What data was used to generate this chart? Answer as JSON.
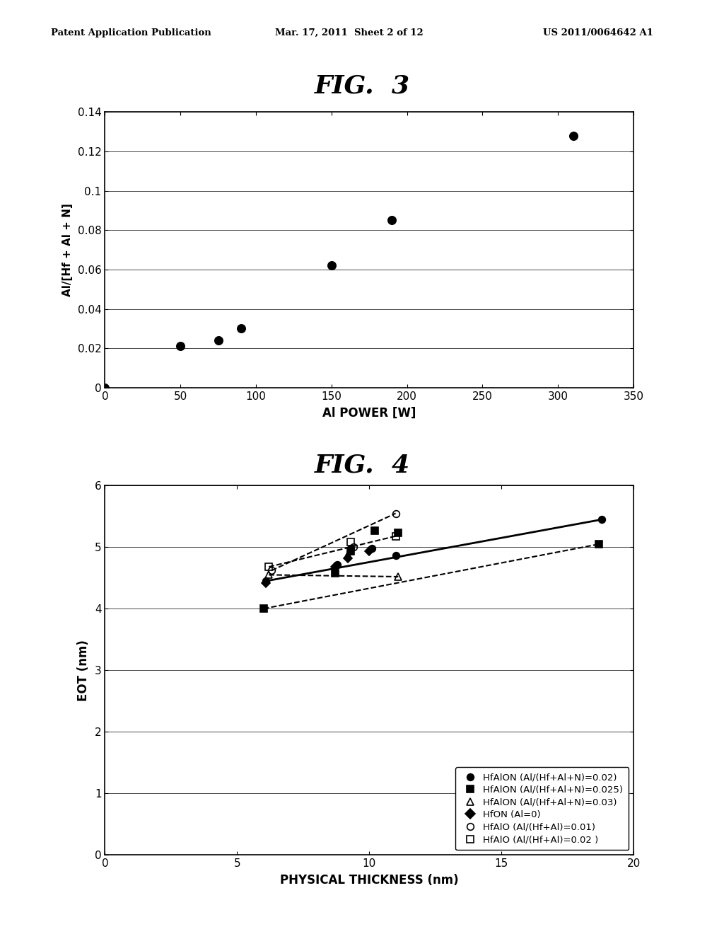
{
  "fig3": {
    "title": "FIG.  3",
    "xlabel": "Al POWER [W]",
    "ylabel": "Al/[Hf + Al + N]",
    "xlim": [
      0,
      350
    ],
    "ylim": [
      0,
      0.14
    ],
    "xticks": [
      0,
      50,
      100,
      150,
      200,
      250,
      300,
      350
    ],
    "yticks": [
      0,
      0.02,
      0.04,
      0.06,
      0.08,
      0.1,
      0.12,
      0.14
    ],
    "data_x": [
      0,
      50,
      75,
      90,
      150,
      190,
      310
    ],
    "data_y": [
      0.0,
      0.021,
      0.024,
      0.03,
      0.062,
      0.085,
      0.128
    ]
  },
  "fig4": {
    "title": "FIG.  4",
    "xlabel": "PHYSICAL THICKNESS (nm)",
    "ylabel": "EOT (nm)",
    "xlim": [
      0,
      20
    ],
    "ylim": [
      0,
      6
    ],
    "xticks": [
      0,
      5,
      10,
      15,
      20
    ],
    "yticks": [
      0,
      1,
      2,
      3,
      4,
      5,
      6
    ],
    "series": [
      {
        "label": "HfAlON (Al/(Hf+Al+N)=0.02)",
        "marker": "o",
        "filled": true,
        "x": [
          6.1,
          8.8,
          9.3,
          10.1,
          11.0,
          18.8
        ],
        "y": [
          4.45,
          4.72,
          4.98,
          4.98,
          4.87,
          5.45
        ],
        "markersize": 7
      },
      {
        "label": "HfAlON (Al/(Hf+Al+N)=0.025)",
        "marker": "s",
        "filled": true,
        "x": [
          6.0,
          8.7,
          9.3,
          10.2,
          11.1,
          18.7
        ],
        "y": [
          4.0,
          4.58,
          4.93,
          5.27,
          5.23,
          5.05
        ],
        "markersize": 7
      },
      {
        "label": "HfAlON (Al/(Hf+Al+N)=0.03)",
        "marker": "^",
        "filled": false,
        "x": [
          6.2,
          9.2,
          11.1
        ],
        "y": [
          4.55,
          4.88,
          4.52
        ],
        "markersize": 7
      },
      {
        "label": "HfON (Al=0)",
        "marker": "D",
        "filled": true,
        "x": [
          6.1,
          8.7,
          9.2,
          10.0
        ],
        "y": [
          4.42,
          4.68,
          4.82,
          4.93
        ],
        "markersize": 6
      },
      {
        "label": "HfAlO (Al/(Hf+Al)=0.01)",
        "marker": "o",
        "filled": false,
        "x": [
          6.3,
          9.4,
          11.0
        ],
        "y": [
          4.62,
          5.0,
          5.55
        ],
        "markersize": 7
      },
      {
        "label": "HfAlO (Al/(Hf+Al)=0.02 )",
        "marker": "s",
        "filled": false,
        "x": [
          6.2,
          9.3,
          11.0
        ],
        "y": [
          4.68,
          5.08,
          5.18
        ],
        "markersize": 7
      }
    ],
    "trendlines": [
      {
        "x": [
          6.1,
          18.8
        ],
        "y": [
          4.45,
          5.45
        ],
        "style": "solid",
        "linewidth": 2.0,
        "series_idx": 0
      },
      {
        "x": [
          6.0,
          18.7
        ],
        "y": [
          4.0,
          5.05
        ],
        "style": "dashed",
        "linewidth": 1.5,
        "series_idx": 1
      },
      {
        "x": [
          6.2,
          11.1
        ],
        "y": [
          4.55,
          4.52
        ],
        "style": "dashed",
        "linewidth": 1.5,
        "series_idx": 2
      },
      {
        "x": [
          6.3,
          11.0
        ],
        "y": [
          4.62,
          5.55
        ],
        "style": "dashed",
        "linewidth": 1.5,
        "series_idx": 4
      },
      {
        "x": [
          6.2,
          11.0
        ],
        "y": [
          4.68,
          5.18
        ],
        "style": "dashed",
        "linewidth": 1.5,
        "series_idx": 5
      }
    ]
  },
  "header": {
    "left": "Patent Application Publication",
    "center": "Mar. 17, 2011  Sheet 2 of 12",
    "right": "US 2011/0064642 A1"
  },
  "bg_color": "#ffffff"
}
